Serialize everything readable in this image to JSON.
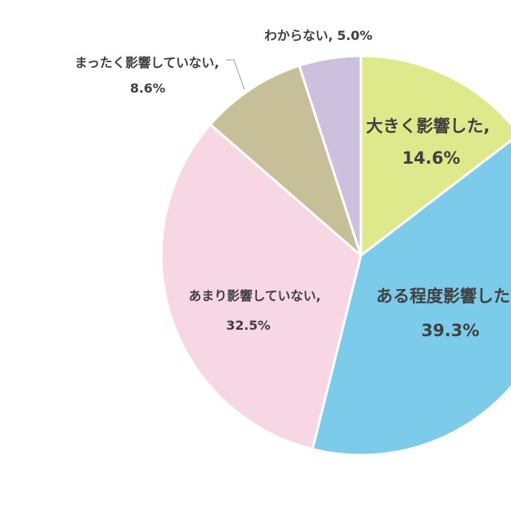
{
  "chart_data": {
    "type": "pie",
    "slices": [
      {
        "label": "大きく影響した,",
        "value": 14.6,
        "value_label": "14.6%",
        "color": "#dde98b"
      },
      {
        "label": "ある程度影響した",
        "value": 39.3,
        "value_label": "39.3%",
        "color": "#7dcbea"
      },
      {
        "label": "あまり影響していない,",
        "value": 32.5,
        "value_label": "32.5%",
        "color": "#f8d7e5"
      },
      {
        "label": "まったく影響していない,",
        "value": 8.6,
        "value_label": "8.6%",
        "color": "#c7bf98"
      },
      {
        "label": "わからない,",
        "value": 5.0,
        "value_label": "5.0%",
        "color": "#ccc0de"
      }
    ]
  }
}
